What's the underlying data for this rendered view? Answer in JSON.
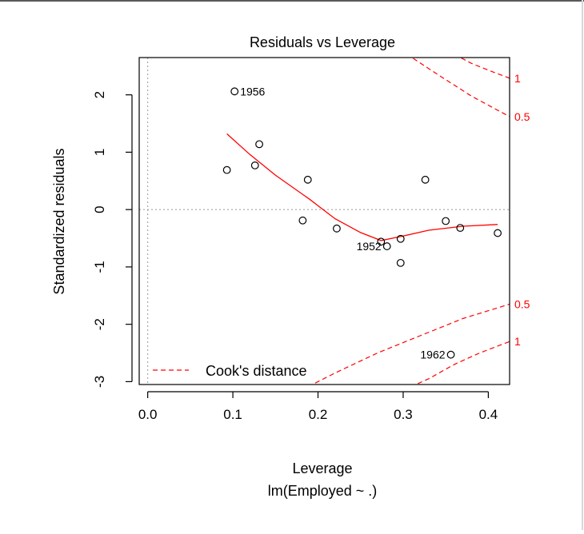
{
  "chart_data": {
    "type": "scatter",
    "title": "Residuals vs Leverage",
    "xlabel": "Leverage",
    "subtitle": "lm(Employed ~ .)",
    "ylabel": "Standardized residuals",
    "xlim": [
      -0.01,
      0.425
    ],
    "ylim": [
      -3.05,
      2.65
    ],
    "x_ticks": [
      0.0,
      0.1,
      0.2,
      0.3,
      0.4
    ],
    "x_tick_labels": [
      "0.0",
      "0.1",
      "0.2",
      "0.3",
      "0.4"
    ],
    "y_ticks": [
      -3,
      -2,
      -1,
      0,
      1,
      2
    ],
    "y_tick_labels": [
      "-3",
      "-2",
      "-1",
      "0",
      "1",
      "2"
    ],
    "points": [
      {
        "x": 0.093,
        "y": 0.69,
        "label": ""
      },
      {
        "x": 0.102,
        "y": 2.06,
        "label": "1956"
      },
      {
        "x": 0.126,
        "y": 0.77,
        "label": ""
      },
      {
        "x": 0.131,
        "y": 1.14,
        "label": ""
      },
      {
        "x": 0.182,
        "y": -0.19,
        "label": ""
      },
      {
        "x": 0.188,
        "y": 0.52,
        "label": ""
      },
      {
        "x": 0.222,
        "y": -0.33,
        "label": ""
      },
      {
        "x": 0.274,
        "y": -0.56,
        "label": ""
      },
      {
        "x": 0.281,
        "y": -0.64,
        "label": "1952"
      },
      {
        "x": 0.297,
        "y": -0.51,
        "label": ""
      },
      {
        "x": 0.297,
        "y": -0.93,
        "label": ""
      },
      {
        "x": 0.326,
        "y": 0.52,
        "label": ""
      },
      {
        "x": 0.35,
        "y": -0.2,
        "label": ""
      },
      {
        "x": 0.356,
        "y": -2.53,
        "label": "1962"
      },
      {
        "x": 0.367,
        "y": -0.32,
        "label": ""
      },
      {
        "x": 0.411,
        "y": -0.41,
        "label": ""
      }
    ],
    "smoother": {
      "x": [
        0.093,
        0.12,
        0.15,
        0.19,
        0.22,
        0.25,
        0.274,
        0.297,
        0.33,
        0.37,
        0.411
      ],
      "y": [
        1.32,
        0.96,
        0.6,
        0.18,
        -0.16,
        -0.4,
        -0.54,
        -0.47,
        -0.36,
        -0.29,
        -0.26
      ]
    },
    "cooks_contours": [
      {
        "level": "0.5",
        "label": "0.5",
        "sign": 1,
        "x": [
          0.27,
          0.3,
          0.34,
          0.38,
          0.425
        ],
        "y": [
          2.95,
          2.75,
          2.36,
          1.98,
          1.62
        ]
      },
      {
        "level": "1",
        "label": "1",
        "sign": 1,
        "x": [
          0.36,
          0.38,
          0.4,
          0.425
        ],
        "y": [
          2.71,
          2.55,
          2.43,
          2.29
        ]
      },
      {
        "level": "0.5",
        "label": "0.5",
        "sign": -1,
        "x": [
          0.18,
          0.22,
          0.27,
          0.32,
          0.37,
          0.425
        ],
        "y": [
          -3.15,
          -2.85,
          -2.5,
          -2.2,
          -1.9,
          -1.65
        ]
      },
      {
        "level": "1",
        "label": "1",
        "sign": -1,
        "x": [
          0.3,
          0.33,
          0.36,
          0.39,
          0.425
        ],
        "y": [
          -3.15,
          -2.95,
          -2.7,
          -2.5,
          -2.3
        ]
      }
    ],
    "legend": {
      "entries": [
        {
          "label": "Cook's distance",
          "style": "dashed-red"
        }
      ],
      "position": "bottom-left"
    },
    "colors": {
      "contour": "#ff0000",
      "smoother": "#ff0000",
      "points": "#000000",
      "reference": "#9a9a9a",
      "axis": "#000000"
    }
  }
}
